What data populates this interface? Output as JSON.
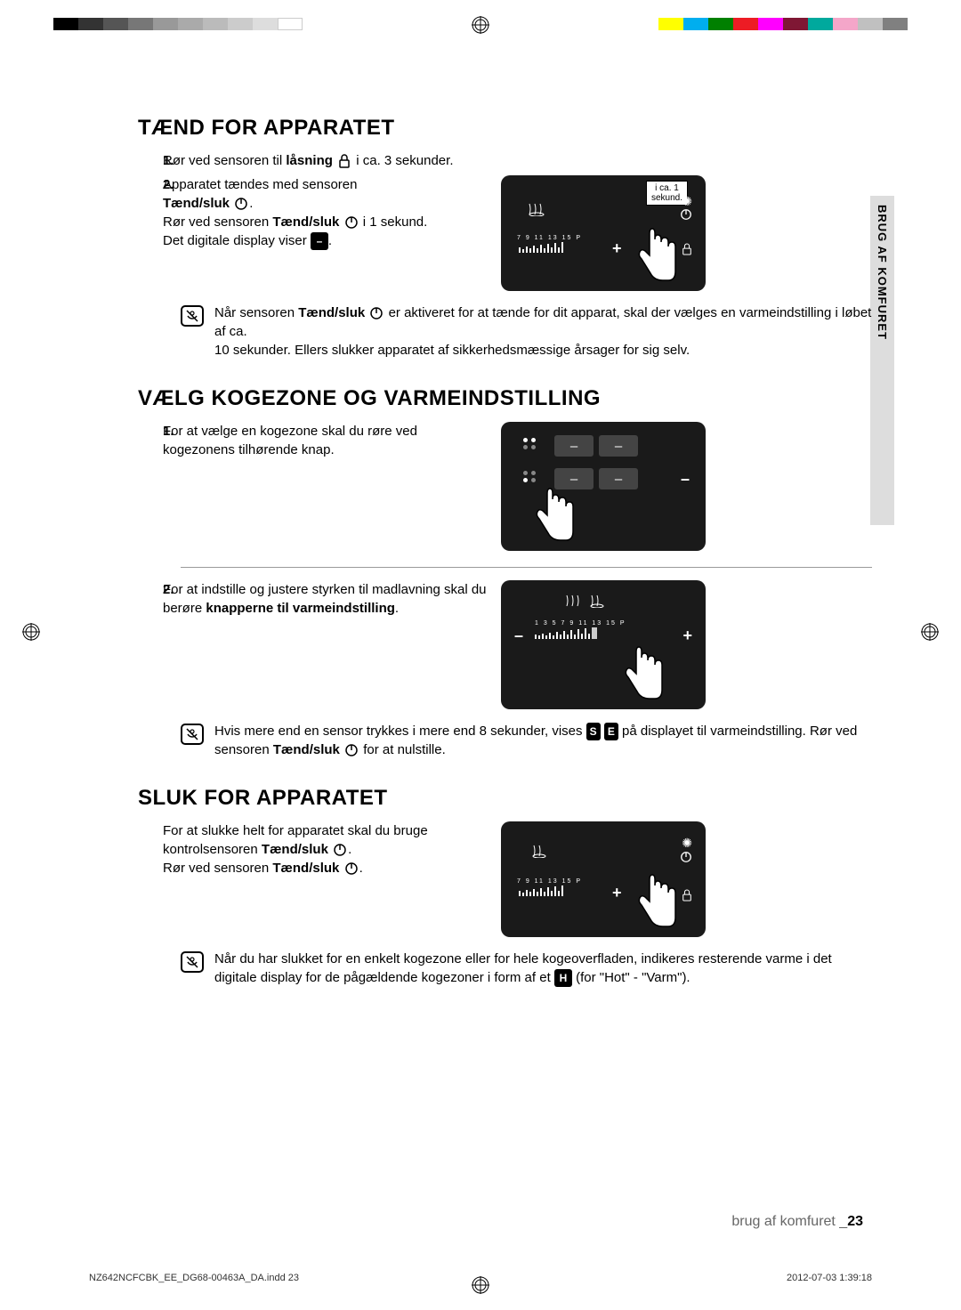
{
  "colorbars": {
    "left": [
      "#000000",
      "#333333",
      "#555555",
      "#777777",
      "#999999",
      "#aaaaaa",
      "#bbbbbb",
      "#cccccc",
      "#dddddd",
      "#ffffff"
    ],
    "right": [
      "#ffff00",
      "#00aeef",
      "#008000",
      "#ed1c24",
      "#ff00ff",
      "#7f1734",
      "#00a99d",
      "#f4a6c9",
      "#c0c0c0",
      "#808080"
    ]
  },
  "sideTab": "BRUG AF KOMFURET",
  "sections": {
    "s1": {
      "title": "TÆND FOR APPARATET",
      "i1_pre": "Rør ved sensoren til ",
      "i1_bold": "låsning",
      "i1_post": " i ca. 3 sekunder.",
      "i2_l1": "Apparatet tændes med sensoren",
      "i2_bold": "Tænd/sluk",
      "i2_l3a": "Rør ved sensoren ",
      "i2_l3b": "Tænd/sluk",
      "i2_l3c": " i 1 sekund.",
      "i2_l4": "Det digitale display viser ",
      "callout_l1": "i ca. 1",
      "callout_l2": "sekund.",
      "note1_a": "Når sensoren ",
      "note1_b": "Tænd/sluk",
      "note1_c": " er aktiveret for at tænde for dit apparat, skal der vælges en varmeindstilling i løbet af ca.",
      "note1_d": "10 sekunder. Ellers slukker apparatet af sikkerhedsmæssige årsager for sig selv."
    },
    "s2": {
      "title": "VÆLG KOGEZONE OG VARMEINDSTILLING",
      "i1": "For at vælge en kogezone skal du røre ved kogezonens tilhørende knap.",
      "i2_a": "For at indstille og justere styrken til madlavning skal du berøre ",
      "i2_b": "knapperne til varmeindstilling",
      "note_a": "Hvis mere end en sensor trykkes i mere end 8 sekunder, vises ",
      "note_b": " på displayet til varmeindstilling. Rør ved sensoren ",
      "note_c": "Tænd/sluk",
      "note_d": " for at nulstille."
    },
    "s3": {
      "title": "SLUK FOR APPARATET",
      "l1": "For at slukke helt for apparatet skal du bruge",
      "l2a": "kontrolsensoren ",
      "l2b": "Tænd/sluk",
      "l3a": "Rør ved sensoren ",
      "l3b": "Tænd/sluk",
      "note_a": "Når du har slukket for en enkelt kogezone eller for hele kogeoverfladen, indikeres resterende varme i det digitale display for de pågældende kogezoner i form af et ",
      "note_b": " (for \"Hot\" - \"Varm\")."
    }
  },
  "footer": {
    "label": "brug af komfuret _",
    "page": "23"
  },
  "meta": {
    "file": "NZ642NCFCBK_EE_DG68-00463A_DA.indd   23",
    "date": "2012-07-03    1:39:18"
  },
  "glyphs": {
    "dash": "–",
    "H": "H",
    "SE": "S E"
  },
  "scaleLabels": "7  9  11  13  15  P",
  "scaleLabels2": "1  3  5  7  9  11  13  15  P"
}
